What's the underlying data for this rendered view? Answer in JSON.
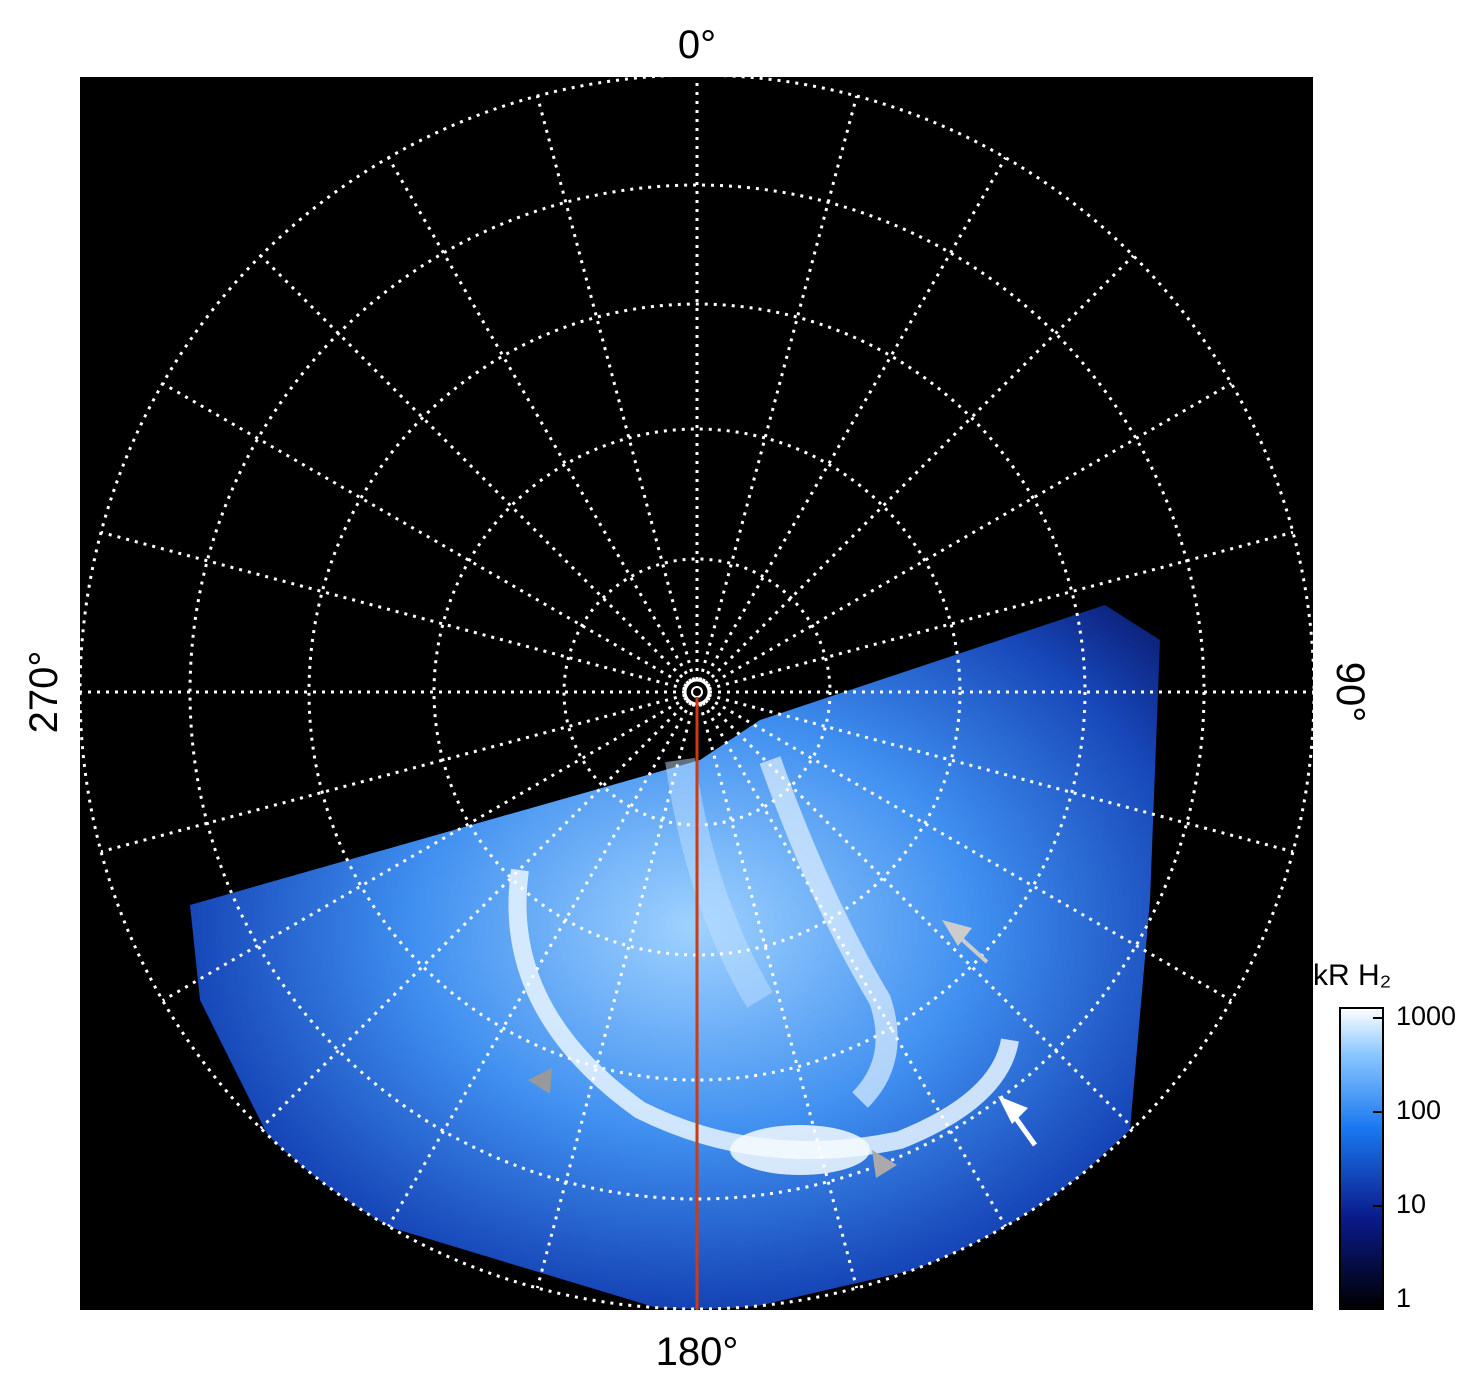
{
  "figure": {
    "longitude_labels": {
      "top": "0°",
      "right": "90°",
      "bottom": "180°",
      "left": "270°"
    },
    "colorbar": {
      "title": "kR H₂",
      "scale": "log",
      "lim": [
        1,
        1000
      ],
      "ticks": [
        1,
        10,
        100,
        1000
      ]
    }
  }
}
